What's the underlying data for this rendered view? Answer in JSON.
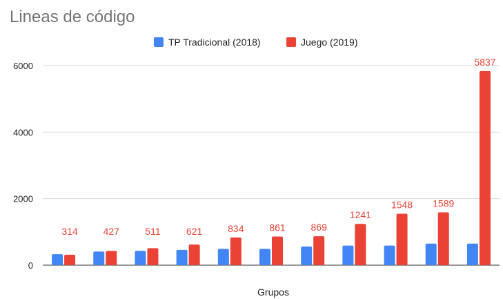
{
  "chart_data": {
    "type": "bar",
    "title": "Lineas de código",
    "xlabel": "Grupos",
    "ylabel": "",
    "ylim": [
      0,
      6000
    ],
    "yticks": [
      0,
      2000,
      4000,
      6000
    ],
    "grid": true,
    "legend_position": "top",
    "categories": [
      "",
      "",
      "",
      "",
      "",
      "",
      "",
      "",
      "",
      "",
      ""
    ],
    "series": [
      {
        "name": "TP Tradicional (2018)",
        "color": "#4285f4",
        "values": [
          330,
          410,
          430,
          460,
          490,
          490,
          560,
          590,
          590,
          650,
          650
        ],
        "show_labels": false
      },
      {
        "name": "Juego (2019)",
        "color": "#ea4335",
        "values": [
          314,
          427,
          511,
          621,
          834,
          861,
          869,
          1241,
          1548,
          1589,
          5837
        ],
        "show_labels": true
      }
    ]
  }
}
